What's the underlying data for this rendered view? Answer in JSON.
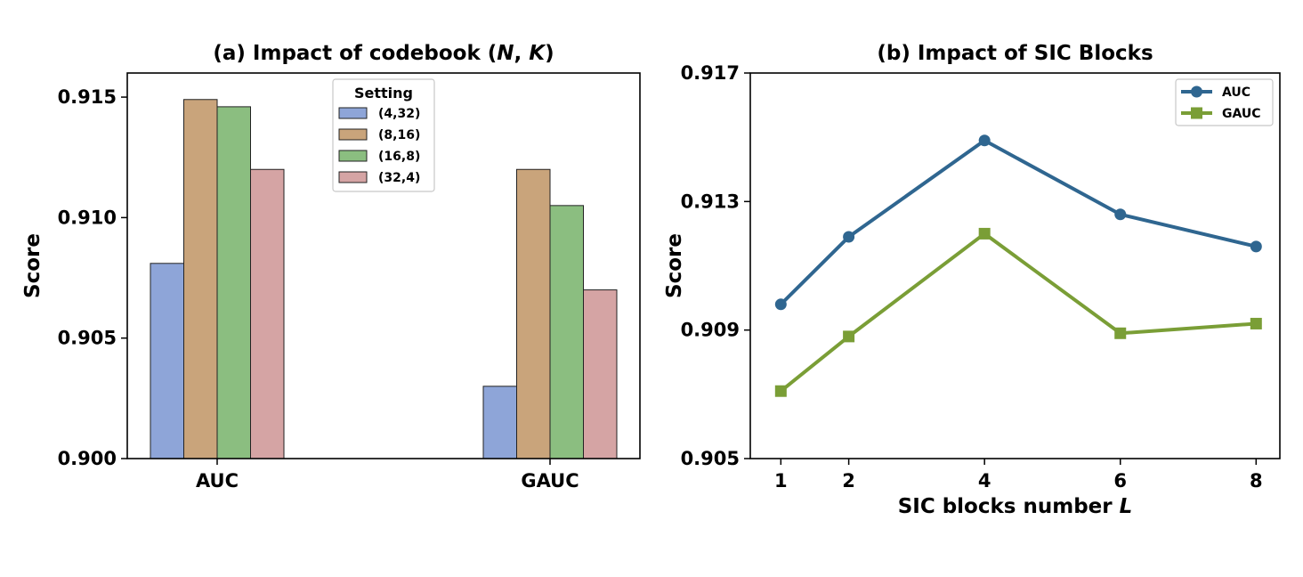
{
  "chart_data": [
    {
      "type": "bar",
      "title": "(a) Impact of codebook (",
      "title_vars": [
        "N",
        "K"
      ],
      "title_sep": ", ",
      "title_end": ")",
      "xlabel": "",
      "ylabel": "Score",
      "categories": [
        "AUC",
        "GAUC"
      ],
      "ylim": [
        0.9,
        0.916
      ],
      "yticks": [
        0.9,
        0.905,
        0.91,
        0.915
      ],
      "ytick_labels": [
        "0.900",
        "0.905",
        "0.910",
        "0.915"
      ],
      "legend_title": "Setting",
      "legend_position": "top-center",
      "grid": false,
      "series": [
        {
          "name": "(4,32)",
          "color": "#8ea5d8",
          "values": [
            0.9081,
            0.903
          ]
        },
        {
          "name": "(8,16)",
          "color": "#c9a47b",
          "values": [
            0.9149,
            0.912
          ]
        },
        {
          "name": "(16,8)",
          "color": "#8bbe80",
          "values": [
            0.9146,
            0.9105
          ]
        },
        {
          "name": "(32,4)",
          "color": "#d5a4a4",
          "values": [
            0.912,
            0.907
          ]
        }
      ]
    },
    {
      "type": "line",
      "title": "(b) Impact of SIC Blocks",
      "xlabel": "SIC blocks number ",
      "xlabel_var": "L",
      "ylabel": "Score",
      "x": [
        1,
        2,
        4,
        6,
        8
      ],
      "xlim": [
        0.55,
        8.35
      ],
      "ylim": [
        0.905,
        0.917
      ],
      "yticks": [
        0.905,
        0.909,
        0.913,
        0.917
      ],
      "ytick_labels": [
        "0.905",
        "0.909",
        "0.913",
        "0.917"
      ],
      "legend_position": "top-right",
      "grid": false,
      "series": [
        {
          "name": "AUC",
          "color": "#2f6690",
          "marker": "circle",
          "values": [
            0.9098,
            0.9119,
            0.9149,
            0.9126,
            0.9116
          ]
        },
        {
          "name": "GAUC",
          "color": "#7a9e36",
          "marker": "square",
          "values": [
            0.9071,
            0.9088,
            0.912,
            0.9089,
            0.9092
          ]
        }
      ]
    }
  ]
}
